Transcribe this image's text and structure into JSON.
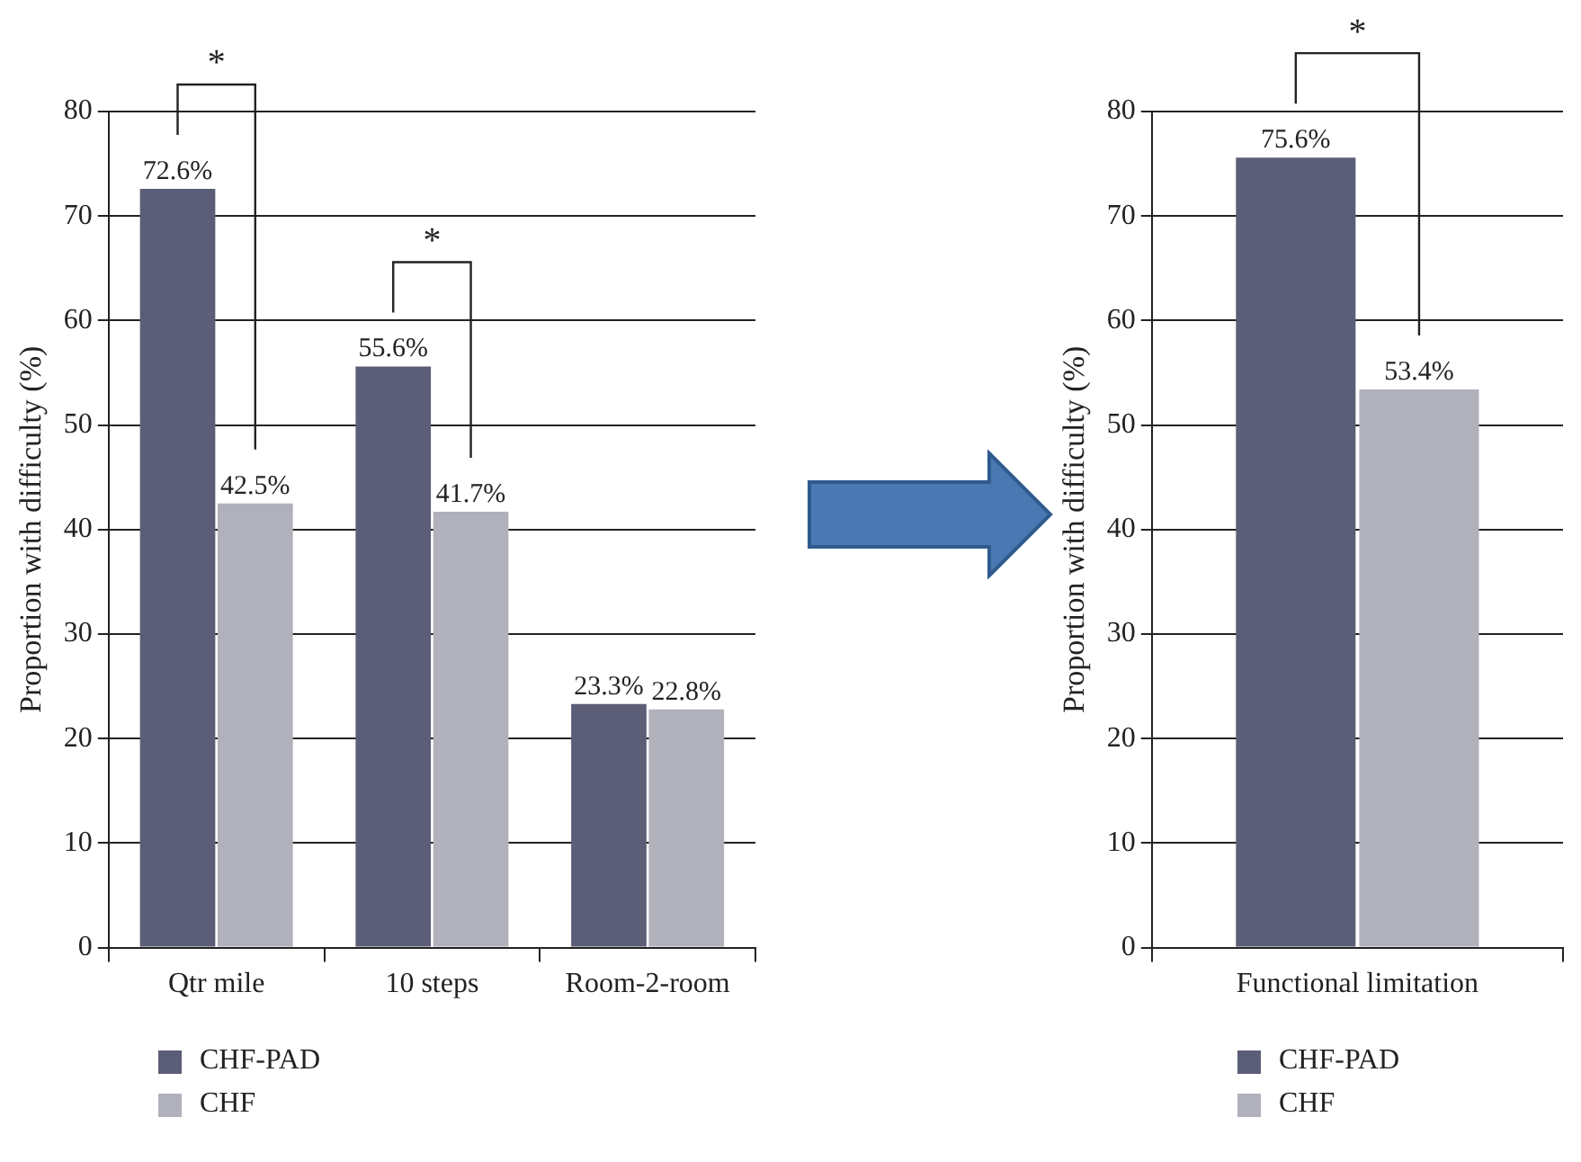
{
  "chart_data": [
    {
      "type": "bar",
      "ylabel": "Proportion with difficulty (%)",
      "categories": [
        "Qtr mile",
        "10 steps",
        "Room-2-room"
      ],
      "series": [
        {
          "name": "CHF-PAD",
          "color": "#5c5e77",
          "values": [
            72.6,
            55.6,
            23.3
          ],
          "value_labels": [
            "72.6%",
            "55.6%",
            "23.3%"
          ]
        },
        {
          "name": "CHF",
          "color": "#b1b1bb",
          "values": [
            42.5,
            41.7,
            22.8
          ],
          "value_labels": [
            "42.5%",
            "41.7%",
            "22.8%"
          ]
        }
      ],
      "ylim": [
        0,
        80
      ],
      "yticks": [
        0,
        10,
        20,
        30,
        40,
        50,
        60,
        70,
        80
      ],
      "grid": "y",
      "legend": "bottom left",
      "annotations": [
        "*",
        "*"
      ]
    },
    {
      "type": "bar",
      "ylabel": "Proportion with difficulty (%)",
      "categories": [
        "Functional limitation"
      ],
      "series": [
        {
          "name": "CHF-PAD",
          "color": "#5c5e77",
          "values": [
            75.6
          ],
          "value_labels": [
            "75.6%"
          ]
        },
        {
          "name": "CHF",
          "color": "#b1b1bb",
          "values": [
            53.4
          ],
          "value_labels": [
            "53.4%"
          ]
        }
      ],
      "ylim": [
        0,
        80
      ],
      "yticks": [
        0,
        10,
        20,
        30,
        40,
        50,
        60,
        70,
        80
      ],
      "grid": "y",
      "legend": "bottom left",
      "annotations": [
        "*"
      ]
    }
  ]
}
